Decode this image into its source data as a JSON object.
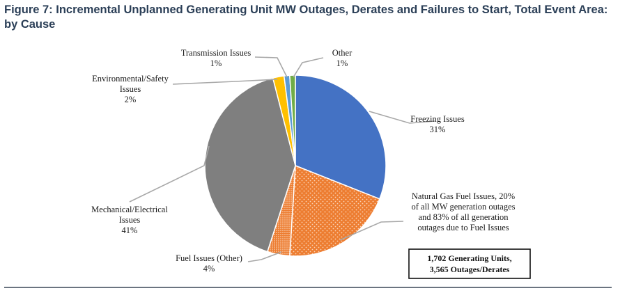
{
  "title": {
    "line1": "Figure 7: Incremental Unplanned Generating Unit MW Outages, Derates and Failures to Start, Total Event Area:",
    "line2": "by Cause"
  },
  "chart_data": {
    "type": "pie",
    "slices": [
      {
        "label_lines": [
          "Freezing Issues",
          "31%"
        ],
        "value": 31,
        "color": "#4472c4",
        "pattern": "solid"
      },
      {
        "label_lines": [
          "Natural Gas Fuel Issues, 20%",
          "of all MW generation outages",
          "and 83% of all generation",
          "outages due to Fuel Issues"
        ],
        "value": 20,
        "color": "#ed7d31",
        "pattern": "dots"
      },
      {
        "label_lines": [
          "Fuel Issues (Other)",
          "4%"
        ],
        "value": 4,
        "color": "#ed7d31",
        "pattern": "dense-dots"
      },
      {
        "label_lines": [
          "Mechanical/Electrical",
          "Issues",
          "41%"
        ],
        "value": 41,
        "color": "#7f7f7f",
        "pattern": "solid"
      },
      {
        "label_lines": [
          "Environmental/Safety",
          "Issues",
          "2%"
        ],
        "value": 2,
        "color": "#ffc000",
        "pattern": "solid"
      },
      {
        "label_lines": [
          "Transmission Issues",
          "1%"
        ],
        "value": 1,
        "color": "#5b9bd5",
        "pattern": "solid"
      },
      {
        "label_lines": [
          "Other",
          "1%"
        ],
        "value": 1,
        "color": "#70ad47",
        "pattern": "solid"
      }
    ],
    "annotation_box": {
      "lines": [
        "1,702 Generating Units,",
        "3,565 Outages/Derates"
      ]
    }
  }
}
